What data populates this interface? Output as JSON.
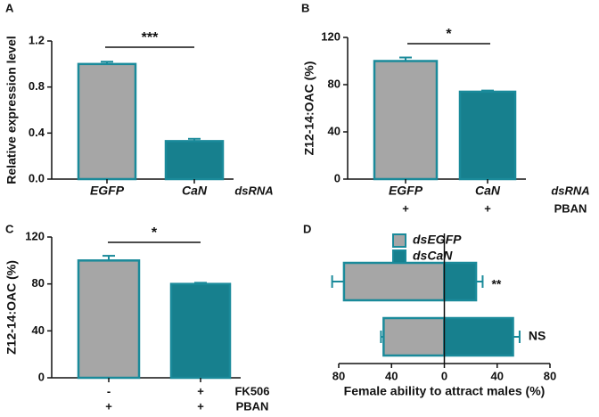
{
  "chart_data": [
    {
      "type": "bar",
      "panel_label": "A",
      "ylabel": "Relative expression level",
      "categories": [
        "EGFP",
        "CaN"
      ],
      "category_title": "dsRNA",
      "values": [
        1.0,
        0.33
      ],
      "errors": [
        0.02,
        0.02
      ],
      "colors": [
        "#a6a6a6",
        "#17808e"
      ],
      "edgecolor": "#1a8a9a",
      "ylim": [
        0,
        1.2
      ],
      "yticks": [
        {
          "value": 0,
          "label": "0.0"
        },
        0.4,
        0.8,
        1.2
      ],
      "significance": "***"
    },
    {
      "type": "bar",
      "panel_label": "B",
      "ylabel": "Z12-14:OAC (%)",
      "categories": [
        "EGFP",
        "CaN"
      ],
      "category_title": "dsRNA",
      "rows": [
        {
          "name": "PBAN",
          "labels": [
            "+",
            "+"
          ]
        }
      ],
      "values": [
        100,
        74
      ],
      "errors": [
        3,
        1
      ],
      "colors": [
        "#a6a6a6",
        "#17808e"
      ],
      "edgecolor": "#1a8a9a",
      "ylim": [
        0,
        120
      ],
      "yticks": [
        0,
        40,
        80,
        120
      ],
      "significance": "*"
    },
    {
      "type": "bar",
      "panel_label": "C",
      "ylabel": "Z12-14:OAC (%)",
      "rows": [
        {
          "name": "FK506",
          "labels": [
            "-",
            "+"
          ]
        },
        {
          "name": "PBAN",
          "labels": [
            "+",
            "+"
          ]
        }
      ],
      "values": [
        100,
        80
      ],
      "errors": [
        4,
        1
      ],
      "colors": [
        "#a6a6a6",
        "#17808e"
      ],
      "edgecolor": "#1a8a9a",
      "ylim": [
        0,
        120
      ],
      "yticks": [
        0,
        40,
        80,
        120
      ],
      "significance": "*"
    },
    {
      "type": "barh",
      "panel_label": "D",
      "xlabel": "Female ability to attract males (%)",
      "series": [
        {
          "name": "dsEGFP",
          "color": "#a6a6a6",
          "values": [
            -76,
            -46
          ],
          "errors": [
            9,
            2
          ]
        },
        {
          "name": "dsCaN",
          "color": "#17808e",
          "values": [
            24,
            52
          ],
          "errors": [
            5,
            5
          ]
        }
      ],
      "annotations": [
        "**",
        "NS"
      ],
      "edgecolor": "#1a8a9a",
      "xlim": [
        -80,
        80
      ],
      "xticks": [
        {
          "value": -80,
          "label": "80"
        },
        {
          "value": -40,
          "label": "40"
        },
        0,
        40,
        80
      ],
      "legend": "upper-right"
    }
  ]
}
